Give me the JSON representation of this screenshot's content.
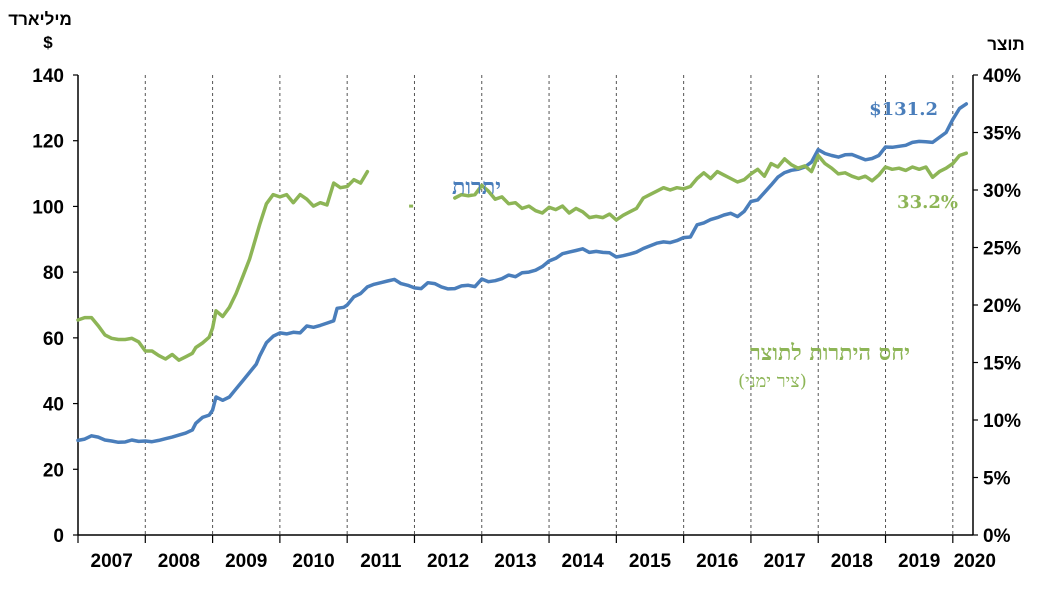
{
  "chart_data": {
    "type": "line",
    "left_unit": [
      "מיליארד",
      "$"
    ],
    "right_unit": "תוצר",
    "left_axis": {
      "min": 0,
      "max": 140,
      "ticks": [
        0,
        20,
        40,
        60,
        80,
        100,
        120,
        140
      ]
    },
    "right_axis": {
      "min": 0,
      "max": 40,
      "ticks": [
        "0%",
        "5%",
        "10%",
        "15%",
        "20%",
        "25%",
        "30%",
        "35%",
        "40%"
      ]
    },
    "x_ticks": [
      "2007",
      "2008",
      "2009",
      "2010",
      "2011",
      "2012",
      "2013",
      "2014",
      "2015",
      "2016",
      "2017",
      "2018",
      "2019",
      "2020"
    ],
    "x_range": [
      2007,
      2020.3
    ],
    "grid": "vertical-dashed-year",
    "colors": {
      "reserves": "#4a7ebb",
      "ratio": "#8db556"
    },
    "series": [
      {
        "name": "יתרות",
        "axis": "left",
        "end_label": "$131.2",
        "points": [
          [
            2007.0,
            28.8
          ],
          [
            2007.1,
            29.2
          ],
          [
            2007.2,
            30.2
          ],
          [
            2007.3,
            29.8
          ],
          [
            2007.4,
            28.9
          ],
          [
            2007.5,
            28.6
          ],
          [
            2007.6,
            28.2
          ],
          [
            2007.7,
            28.3
          ],
          [
            2007.8,
            28.9
          ],
          [
            2007.9,
            28.5
          ],
          [
            2008.0,
            28.6
          ],
          [
            2008.1,
            28.4
          ],
          [
            2008.2,
            28.8
          ],
          [
            2008.3,
            29.3
          ],
          [
            2008.4,
            29.8
          ],
          [
            2008.5,
            30.4
          ],
          [
            2008.6,
            31.0
          ],
          [
            2008.7,
            32.0
          ],
          [
            2008.75,
            34.0
          ],
          [
            2008.85,
            35.8
          ],
          [
            2008.95,
            36.5
          ],
          [
            2009.0,
            38.0
          ],
          [
            2009.05,
            42.0
          ],
          [
            2009.15,
            41.0
          ],
          [
            2009.25,
            42.0
          ],
          [
            2009.35,
            44.5
          ],
          [
            2009.45,
            47.0
          ],
          [
            2009.55,
            49.5
          ],
          [
            2009.65,
            52.0
          ],
          [
            2009.7,
            54.5
          ],
          [
            2009.8,
            58.5
          ],
          [
            2009.9,
            60.5
          ],
          [
            2010.0,
            61.5
          ],
          [
            2010.1,
            61.2
          ],
          [
            2010.2,
            61.7
          ],
          [
            2010.3,
            61.5
          ],
          [
            2010.4,
            63.6
          ],
          [
            2010.5,
            63.2
          ],
          [
            2010.6,
            63.8
          ],
          [
            2010.7,
            64.5
          ],
          [
            2010.8,
            65.2
          ],
          [
            2010.85,
            69.0
          ],
          [
            2010.95,
            69.3
          ],
          [
            2011.0,
            70.0
          ],
          [
            2011.1,
            72.5
          ],
          [
            2011.2,
            73.5
          ],
          [
            2011.3,
            75.5
          ],
          [
            2011.4,
            76.3
          ],
          [
            2011.5,
            76.8
          ],
          [
            2011.6,
            77.3
          ],
          [
            2011.7,
            77.8
          ],
          [
            2011.8,
            76.5
          ],
          [
            2011.9,
            76.0
          ],
          [
            2012.0,
            75.2
          ],
          [
            2012.1,
            75.0
          ],
          [
            2012.2,
            76.8
          ],
          [
            2012.3,
            76.5
          ],
          [
            2012.4,
            75.5
          ],
          [
            2012.5,
            74.9
          ],
          [
            2012.6,
            75.0
          ],
          [
            2012.7,
            75.8
          ],
          [
            2012.8,
            76.0
          ],
          [
            2012.9,
            75.6
          ],
          [
            2013.0,
            77.9
          ],
          [
            2013.1,
            77.1
          ],
          [
            2013.2,
            77.4
          ],
          [
            2013.3,
            78.0
          ],
          [
            2013.4,
            79.1
          ],
          [
            2013.5,
            78.6
          ],
          [
            2013.6,
            79.8
          ],
          [
            2013.7,
            80.0
          ],
          [
            2013.8,
            80.6
          ],
          [
            2013.9,
            81.7
          ],
          [
            2014.0,
            83.4
          ],
          [
            2014.1,
            84.2
          ],
          [
            2014.2,
            85.6
          ],
          [
            2014.3,
            86.1
          ],
          [
            2014.4,
            86.6
          ],
          [
            2014.5,
            87.1
          ],
          [
            2014.6,
            86.0
          ],
          [
            2014.7,
            86.3
          ],
          [
            2014.8,
            86.0
          ],
          [
            2014.9,
            85.9
          ],
          [
            2015.0,
            84.6
          ],
          [
            2015.1,
            85.0
          ],
          [
            2015.2,
            85.5
          ],
          [
            2015.3,
            86.1
          ],
          [
            2015.4,
            87.2
          ],
          [
            2015.5,
            88.0
          ],
          [
            2015.6,
            88.8
          ],
          [
            2015.7,
            89.2
          ],
          [
            2015.8,
            89.0
          ],
          [
            2015.9,
            89.6
          ],
          [
            2016.0,
            90.5
          ],
          [
            2016.1,
            90.7
          ],
          [
            2016.2,
            94.4
          ],
          [
            2016.3,
            95.0
          ],
          [
            2016.4,
            96.0
          ],
          [
            2016.5,
            96.6
          ],
          [
            2016.6,
            97.4
          ],
          [
            2016.7,
            97.9
          ],
          [
            2016.8,
            96.9
          ],
          [
            2016.9,
            98.5
          ],
          [
            2017.0,
            101.5
          ],
          [
            2017.1,
            102.0
          ],
          [
            2017.2,
            104.2
          ],
          [
            2017.3,
            106.5
          ],
          [
            2017.4,
            108.9
          ],
          [
            2017.5,
            110.3
          ],
          [
            2017.6,
            111.0
          ],
          [
            2017.7,
            111.3
          ],
          [
            2017.8,
            112.0
          ],
          [
            2017.9,
            113.5
          ],
          [
            2018.0,
            117.3
          ],
          [
            2018.1,
            116.1
          ],
          [
            2018.2,
            115.5
          ],
          [
            2018.3,
            115.0
          ],
          [
            2018.4,
            115.7
          ],
          [
            2018.5,
            115.8
          ],
          [
            2018.6,
            115.0
          ],
          [
            2018.7,
            114.2
          ],
          [
            2018.8,
            114.6
          ],
          [
            2018.9,
            115.5
          ],
          [
            2019.0,
            118.1
          ],
          [
            2019.1,
            118.0
          ],
          [
            2019.2,
            118.3
          ],
          [
            2019.3,
            118.6
          ],
          [
            2019.4,
            119.5
          ],
          [
            2019.5,
            119.8
          ],
          [
            2019.6,
            119.7
          ],
          [
            2019.7,
            119.5
          ],
          [
            2019.8,
            121.0
          ],
          [
            2019.9,
            122.5
          ],
          [
            2020.0,
            126.5
          ],
          [
            2020.1,
            129.8
          ],
          [
            2020.2,
            131.2
          ]
        ]
      },
      {
        "name": "יחס היתרות לתוצר",
        "subtitle": "(ציר ימני)",
        "axis": "right",
        "end_label": "33.2%",
        "points": [
          [
            2007.0,
            18.7
          ],
          [
            2007.1,
            18.9
          ],
          [
            2007.2,
            18.9
          ],
          [
            2007.3,
            18.2
          ],
          [
            2007.4,
            17.4
          ],
          [
            2007.5,
            17.1
          ],
          [
            2007.6,
            17.0
          ],
          [
            2007.7,
            17.0
          ],
          [
            2007.8,
            17.1
          ],
          [
            2007.9,
            16.8
          ],
          [
            2008.0,
            16.0
          ],
          [
            2008.1,
            16.0
          ],
          [
            2008.2,
            15.6
          ],
          [
            2008.3,
            15.3
          ],
          [
            2008.4,
            15.7
          ],
          [
            2008.5,
            15.2
          ],
          [
            2008.6,
            15.5
          ],
          [
            2008.7,
            15.8
          ],
          [
            2008.75,
            16.3
          ],
          [
            2008.85,
            16.7
          ],
          [
            2008.95,
            17.2
          ],
          [
            2009.0,
            18.0
          ],
          [
            2009.05,
            19.5
          ],
          [
            2009.15,
            19.0
          ],
          [
            2009.25,
            19.8
          ],
          [
            2009.35,
            21.0
          ],
          [
            2009.45,
            22.5
          ],
          [
            2009.55,
            24.0
          ],
          [
            2009.6,
            25.0
          ],
          [
            2009.7,
            27.0
          ],
          [
            2009.8,
            28.8
          ],
          [
            2009.9,
            29.6
          ],
          [
            2010.0,
            29.4
          ],
          [
            2010.1,
            29.6
          ],
          [
            2010.2,
            28.9
          ],
          [
            2010.3,
            29.6
          ],
          [
            2010.4,
            29.2
          ],
          [
            2010.5,
            28.6
          ],
          [
            2010.6,
            28.9
          ],
          [
            2010.7,
            28.7
          ],
          [
            2010.8,
            30.6
          ],
          [
            2010.9,
            30.2
          ],
          [
            2011.0,
            30.3
          ],
          [
            2011.1,
            30.9
          ],
          [
            2011.2,
            30.6
          ],
          [
            2011.3,
            31.6
          ]
        ],
        "points2": [
          [
            2011.95,
            28.6
          ]
        ],
        "points3": [
          [
            2012.6,
            29.3
          ],
          [
            2012.7,
            29.6
          ],
          [
            2012.8,
            29.5
          ],
          [
            2012.9,
            29.6
          ],
          [
            2013.0,
            30.4
          ],
          [
            2013.1,
            29.9
          ],
          [
            2013.2,
            29.2
          ],
          [
            2013.3,
            29.4
          ],
          [
            2013.4,
            28.8
          ],
          [
            2013.5,
            28.9
          ],
          [
            2013.6,
            28.4
          ],
          [
            2013.7,
            28.6
          ],
          [
            2013.8,
            28.2
          ],
          [
            2013.9,
            28.0
          ],
          [
            2014.0,
            28.5
          ],
          [
            2014.1,
            28.3
          ],
          [
            2014.2,
            28.6
          ],
          [
            2014.3,
            28.0
          ],
          [
            2014.4,
            28.4
          ],
          [
            2014.5,
            28.1
          ],
          [
            2014.6,
            27.6
          ],
          [
            2014.7,
            27.7
          ],
          [
            2014.8,
            27.6
          ],
          [
            2014.9,
            27.9
          ],
          [
            2015.0,
            27.4
          ],
          [
            2015.1,
            27.8
          ],
          [
            2015.2,
            28.1
          ],
          [
            2015.3,
            28.4
          ],
          [
            2015.4,
            29.3
          ],
          [
            2015.5,
            29.6
          ],
          [
            2015.6,
            29.9
          ],
          [
            2015.7,
            30.2
          ],
          [
            2015.8,
            30.0
          ],
          [
            2015.9,
            30.2
          ],
          [
            2016.0,
            30.1
          ],
          [
            2016.1,
            30.3
          ],
          [
            2016.2,
            31.0
          ],
          [
            2016.3,
            31.5
          ],
          [
            2016.4,
            31.0
          ],
          [
            2016.5,
            31.6
          ],
          [
            2016.6,
            31.3
          ],
          [
            2016.7,
            31.0
          ],
          [
            2016.8,
            30.7
          ],
          [
            2016.9,
            30.9
          ],
          [
            2017.0,
            31.4
          ],
          [
            2017.1,
            31.8
          ],
          [
            2017.2,
            31.2
          ],
          [
            2017.3,
            32.3
          ],
          [
            2017.4,
            32.0
          ],
          [
            2017.5,
            32.7
          ],
          [
            2017.6,
            32.2
          ],
          [
            2017.7,
            31.9
          ],
          [
            2017.8,
            32.1
          ],
          [
            2017.9,
            31.6
          ],
          [
            2018.0,
            33.0
          ],
          [
            2018.1,
            32.3
          ],
          [
            2018.2,
            31.9
          ],
          [
            2018.3,
            31.4
          ],
          [
            2018.4,
            31.5
          ],
          [
            2018.5,
            31.2
          ],
          [
            2018.6,
            31.0
          ],
          [
            2018.7,
            31.2
          ],
          [
            2018.8,
            30.8
          ],
          [
            2018.9,
            31.3
          ],
          [
            2019.0,
            32.0
          ],
          [
            2019.1,
            31.8
          ],
          [
            2019.2,
            31.9
          ],
          [
            2019.3,
            31.7
          ],
          [
            2019.4,
            32.0
          ],
          [
            2019.5,
            31.8
          ],
          [
            2019.6,
            32.0
          ],
          [
            2019.7,
            31.1
          ],
          [
            2019.8,
            31.6
          ],
          [
            2019.9,
            31.9
          ],
          [
            2020.0,
            32.3
          ],
          [
            2020.1,
            33.0
          ],
          [
            2020.2,
            33.2
          ]
        ]
      }
    ]
  }
}
